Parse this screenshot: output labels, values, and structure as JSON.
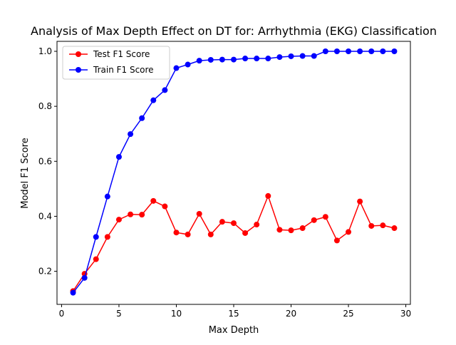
{
  "chart_data": {
    "type": "line",
    "title": "Analysis of Max Depth Effect on DT for: Arrhythmia (EKG) Classification",
    "xlabel": "Max Depth",
    "ylabel": "Model F1 Score",
    "xlim": [
      -0.4,
      30.4
    ],
    "ylim": [
      0.0797,
      1.0363
    ],
    "xticks": [
      0,
      5,
      10,
      15,
      20,
      25,
      30
    ],
    "yticks": [
      0.2,
      0.4,
      0.6,
      0.8,
      1.0
    ],
    "ytick_labels": [
      "0.2",
      "0.4",
      "0.6",
      "0.8",
      "1.0"
    ],
    "grid": false,
    "legend_position": "top-left",
    "x": [
      1,
      2,
      3,
      4,
      5,
      6,
      7,
      8,
      9,
      10,
      11,
      12,
      13,
      14,
      15,
      16,
      17,
      18,
      19,
      20,
      21,
      22,
      23,
      24,
      25,
      26,
      27,
      28,
      29
    ],
    "series": [
      {
        "name": "Test F1 Score",
        "color": "#ff0000",
        "values": [
          0.128,
          0.191,
          0.244,
          0.325,
          0.388,
          0.407,
          0.406,
          0.456,
          0.436,
          0.341,
          0.334,
          0.409,
          0.334,
          0.38,
          0.375,
          0.339,
          0.37,
          0.474,
          0.351,
          0.349,
          0.357,
          0.386,
          0.398,
          0.312,
          0.343,
          0.454,
          0.365,
          0.367,
          0.357
        ]
      },
      {
        "name": "Train F1 Score",
        "color": "#0000ff",
        "values": [
          0.122,
          0.176,
          0.325,
          0.472,
          0.616,
          0.699,
          0.757,
          0.822,
          0.859,
          0.939,
          0.952,
          0.966,
          0.969,
          0.97,
          0.97,
          0.974,
          0.974,
          0.974,
          0.979,
          0.982,
          0.983,
          0.983,
          1.0,
          1.0,
          1.0,
          1.0,
          1.0,
          1.0,
          1.0
        ]
      }
    ]
  }
}
